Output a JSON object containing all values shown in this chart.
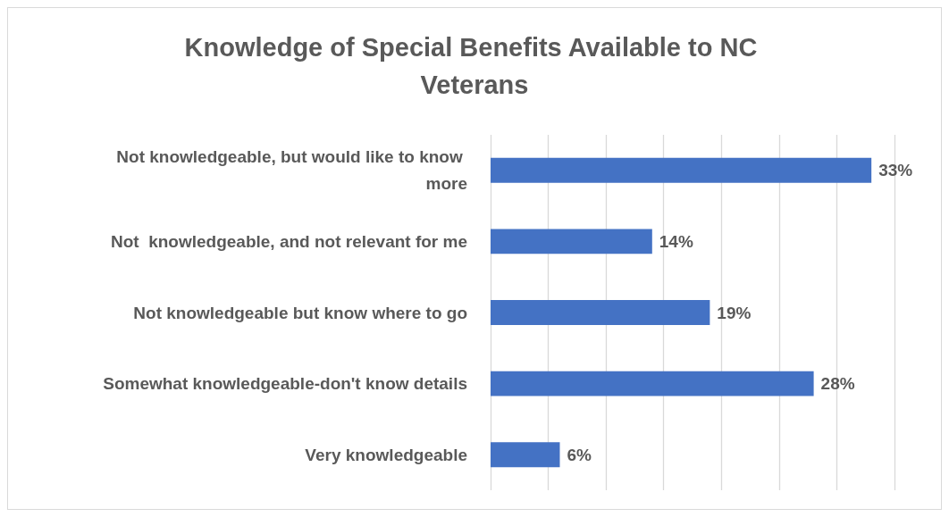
{
  "chart_data": {
    "type": "bar",
    "orientation": "horizontal",
    "title": "Knowledge of Special Benefits Available to NC Veterans",
    "categories": [
      "Not knowledgeable, but would like to know more",
      "Not  knowledgeable, and not relevant for me",
      "Not knowledgeable but know where to go",
      "Somewhat knowledgeable-don't know details",
      "Very knowledgeable"
    ],
    "values": [
      33,
      14,
      19,
      28,
      6
    ],
    "value_labels": [
      "33%",
      "14%",
      "19%",
      "28%",
      "6%"
    ],
    "color": "#4472c4",
    "xlim": [
      0,
      35
    ],
    "xticks": [
      {
        "value": 0,
        "label": null
      },
      {
        "value": 5,
        "label": null
      },
      {
        "value": 10,
        "label": null
      },
      {
        "value": 15,
        "label": null
      },
      {
        "value": 20,
        "label": null
      },
      {
        "value": 25,
        "label": null
      },
      {
        "value": 30,
        "label": null
      },
      {
        "value": 35,
        "label": null
      }
    ],
    "grid": "x"
  }
}
